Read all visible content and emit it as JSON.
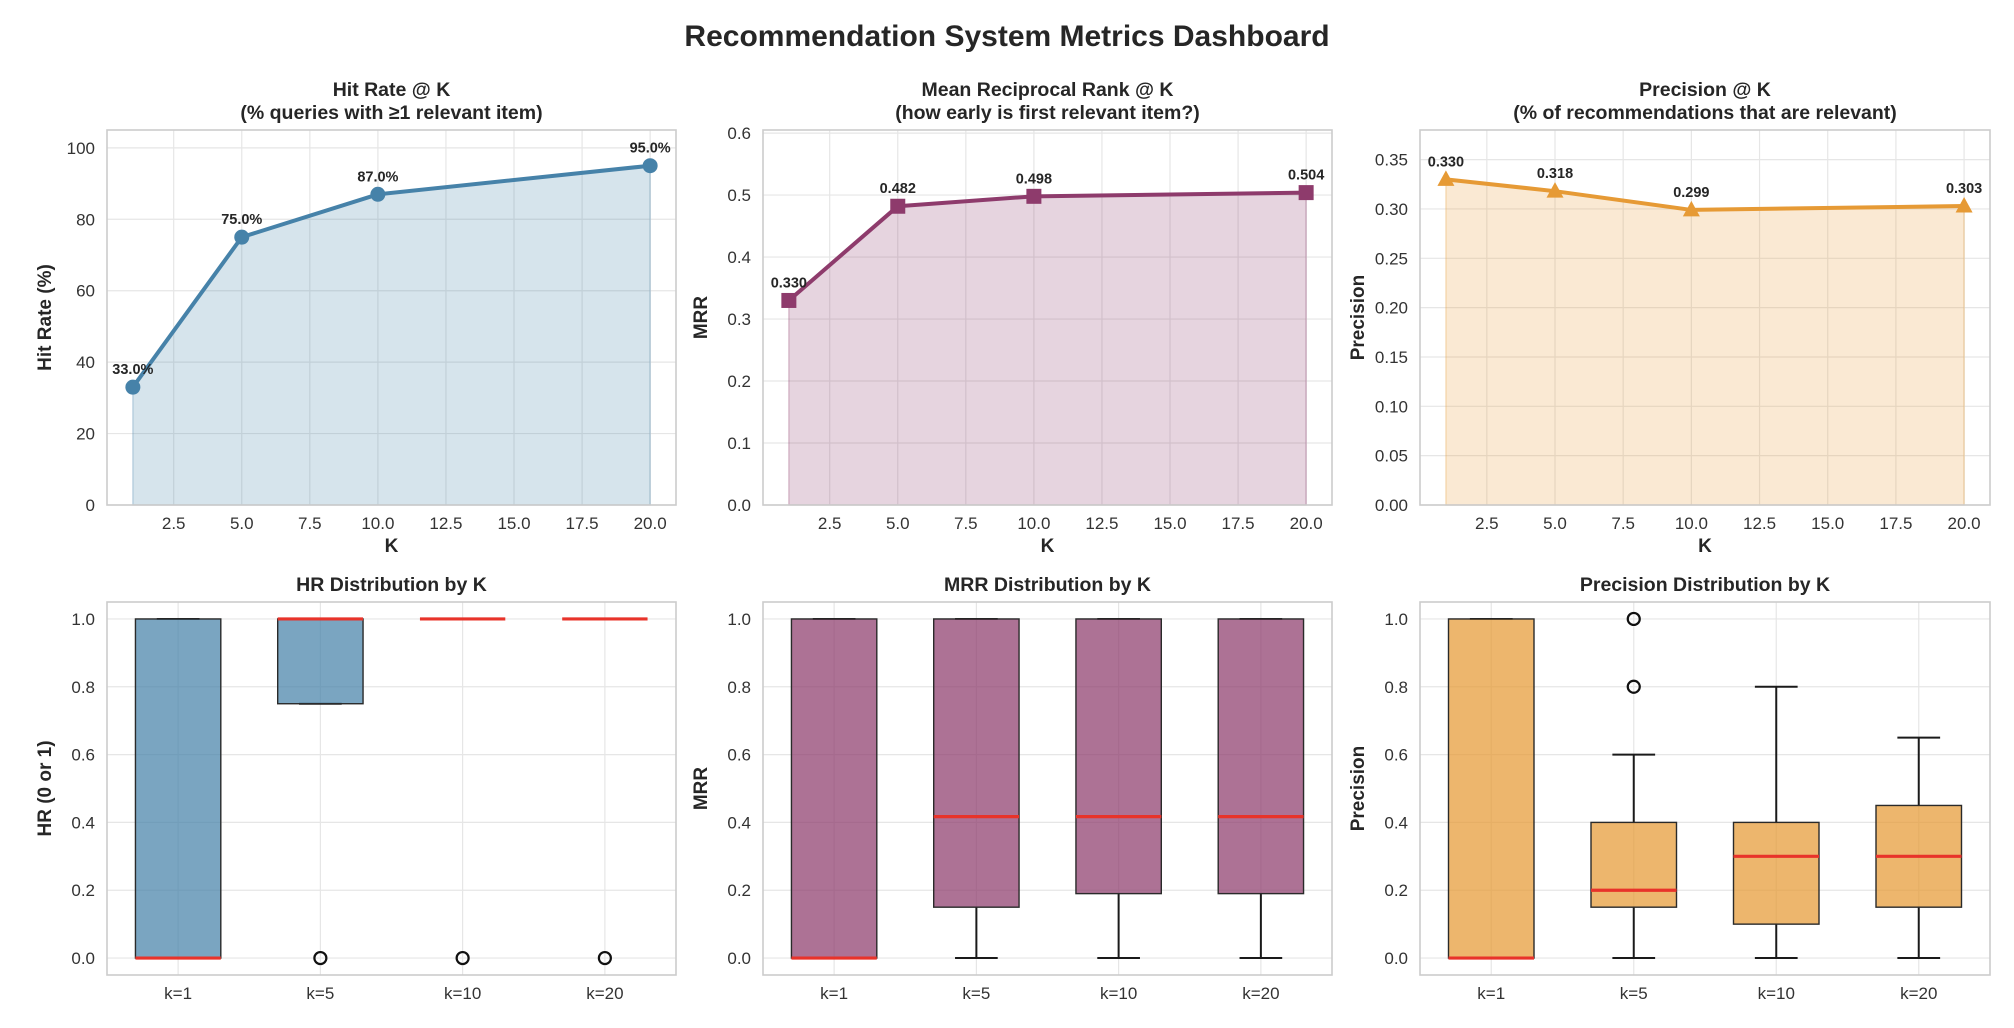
{
  "suptitle": "Recommendation System Metrics Dashboard",
  "colors": {
    "hr": "#4682a9",
    "mrr": "#8e3b6c",
    "precision": "#e69a35",
    "median": "#e8332a",
    "grid": "#e6e6e6",
    "frame": "#cccccc"
  },
  "chart_data": [
    {
      "id": "hr-line",
      "type": "line",
      "title": [
        "Hit Rate @ K",
        "(% queries with ≥1 relevant item)"
      ],
      "xlabel": "K",
      "ylabel": "Hit Rate (%)",
      "x": [
        1,
        5,
        10,
        20
      ],
      "values": [
        33.0,
        75.0,
        87.0,
        95.0
      ],
      "data_labels": [
        "33.0%",
        "75.0%",
        "87.0%",
        "95.0%"
      ],
      "xlim": [
        0.05,
        20.95
      ],
      "ylim": [
        0,
        105
      ],
      "xticks": [
        2.5,
        5.0,
        7.5,
        10.0,
        12.5,
        15.0,
        17.5,
        20.0
      ],
      "xtick_labels": [
        "2.5",
        "5.0",
        "7.5",
        "10.0",
        "12.5",
        "15.0",
        "17.5",
        "20.0"
      ],
      "yticks": [
        0,
        20,
        40,
        60,
        80,
        100
      ],
      "ytick_labels": [
        "0",
        "20",
        "40",
        "60",
        "80",
        "100"
      ],
      "marker": "circle",
      "color_key": "hr",
      "filled": true
    },
    {
      "id": "mrr-line",
      "type": "line",
      "title": [
        "Mean Reciprocal Rank @ K",
        "(how early is first relevant item?)"
      ],
      "xlabel": "K",
      "ylabel": "MRR",
      "x": [
        1,
        5,
        10,
        20
      ],
      "values": [
        0.33,
        0.482,
        0.498,
        0.504
      ],
      "data_labels": [
        "0.330",
        "0.482",
        "0.498",
        "0.504"
      ],
      "xlim": [
        0.05,
        20.95
      ],
      "ylim": [
        0,
        0.605
      ],
      "xticks": [
        2.5,
        5.0,
        7.5,
        10.0,
        12.5,
        15.0,
        17.5,
        20.0
      ],
      "xtick_labels": [
        "2.5",
        "5.0",
        "7.5",
        "10.0",
        "12.5",
        "15.0",
        "17.5",
        "20.0"
      ],
      "yticks": [
        0.0,
        0.1,
        0.2,
        0.3,
        0.4,
        0.5,
        0.6
      ],
      "ytick_labels": [
        "0.0",
        "0.1",
        "0.2",
        "0.3",
        "0.4",
        "0.5",
        "0.6"
      ],
      "marker": "square",
      "color_key": "mrr",
      "filled": true
    },
    {
      "id": "precision-line",
      "type": "line",
      "title": [
        "Precision @ K",
        "(% of recommendations that are relevant)"
      ],
      "xlabel": "K",
      "ylabel": "Precision",
      "x": [
        1,
        5,
        10,
        20
      ],
      "values": [
        0.33,
        0.318,
        0.299,
        0.303
      ],
      "data_labels": [
        "0.330",
        "0.318",
        "0.299",
        "0.303"
      ],
      "xlim": [
        0.05,
        20.95
      ],
      "ylim": [
        0,
        0.38
      ],
      "xticks": [
        2.5,
        5.0,
        7.5,
        10.0,
        12.5,
        15.0,
        17.5,
        20.0
      ],
      "xtick_labels": [
        "2.5",
        "5.0",
        "7.5",
        "10.0",
        "12.5",
        "15.0",
        "17.5",
        "20.0"
      ],
      "yticks": [
        0.0,
        0.05,
        0.1,
        0.15,
        0.2,
        0.25,
        0.3,
        0.35
      ],
      "ytick_labels": [
        "0.00",
        "0.05",
        "0.10",
        "0.15",
        "0.20",
        "0.25",
        "0.30",
        "0.35"
      ],
      "marker": "triangle",
      "color_key": "precision",
      "filled": true
    },
    {
      "id": "hr-box",
      "type": "box",
      "title": [
        "HR Distribution by K"
      ],
      "xlabel": "",
      "ylabel": "HR (0 or 1)",
      "categories": [
        "k=1",
        "k=5",
        "k=10",
        "k=20"
      ],
      "ylim": [
        -0.05,
        1.05
      ],
      "yticks": [
        0.0,
        0.2,
        0.4,
        0.6,
        0.8,
        1.0
      ],
      "ytick_labels": [
        "0.0",
        "0.2",
        "0.4",
        "0.6",
        "0.8",
        "1.0"
      ],
      "color_key": "hr",
      "boxes": [
        {
          "whislo": 0.0,
          "q1": 0.0,
          "med": 0.0,
          "q3": 1.0,
          "whishi": 1.0,
          "fliers": []
        },
        {
          "whislo": 0.75,
          "q1": 0.75,
          "med": 1.0,
          "q3": 1.0,
          "whishi": 1.0,
          "fliers": [
            0.0
          ]
        },
        {
          "whislo": 1.0,
          "q1": 1.0,
          "med": 1.0,
          "q3": 1.0,
          "whishi": 1.0,
          "fliers": [
            0.0
          ]
        },
        {
          "whislo": 1.0,
          "q1": 1.0,
          "med": 1.0,
          "q3": 1.0,
          "whishi": 1.0,
          "fliers": [
            0.0
          ]
        }
      ]
    },
    {
      "id": "mrr-box",
      "type": "box",
      "title": [
        "MRR Distribution by K"
      ],
      "xlabel": "",
      "ylabel": "MRR",
      "categories": [
        "k=1",
        "k=5",
        "k=10",
        "k=20"
      ],
      "ylim": [
        -0.05,
        1.05
      ],
      "yticks": [
        0.0,
        0.2,
        0.4,
        0.6,
        0.8,
        1.0
      ],
      "ytick_labels": [
        "0.0",
        "0.2",
        "0.4",
        "0.6",
        "0.8",
        "1.0"
      ],
      "color_key": "mrr",
      "boxes": [
        {
          "whislo": 0.0,
          "q1": 0.0,
          "med": 0.0,
          "q3": 1.0,
          "whishi": 1.0,
          "fliers": []
        },
        {
          "whislo": 0.0,
          "q1": 0.15,
          "med": 0.417,
          "q3": 1.0,
          "whishi": 1.0,
          "fliers": []
        },
        {
          "whislo": 0.0,
          "q1": 0.19,
          "med": 0.417,
          "q3": 1.0,
          "whishi": 1.0,
          "fliers": []
        },
        {
          "whislo": 0.0,
          "q1": 0.19,
          "med": 0.417,
          "q3": 1.0,
          "whishi": 1.0,
          "fliers": []
        }
      ]
    },
    {
      "id": "precision-box",
      "type": "box",
      "title": [
        "Precision Distribution by K"
      ],
      "xlabel": "",
      "ylabel": "Precision",
      "categories": [
        "k=1",
        "k=5",
        "k=10",
        "k=20"
      ],
      "ylim": [
        -0.05,
        1.05
      ],
      "yticks": [
        0.0,
        0.2,
        0.4,
        0.6,
        0.8,
        1.0
      ],
      "ytick_labels": [
        "0.0",
        "0.2",
        "0.4",
        "0.6",
        "0.8",
        "1.0"
      ],
      "color_key": "precision",
      "boxes": [
        {
          "whislo": 0.0,
          "q1": 0.0,
          "med": 0.0,
          "q3": 1.0,
          "whishi": 1.0,
          "fliers": []
        },
        {
          "whislo": 0.0,
          "q1": 0.15,
          "med": 0.2,
          "q3": 0.4,
          "whishi": 0.6,
          "fliers": [
            0.8,
            1.0
          ]
        },
        {
          "whislo": 0.0,
          "q1": 0.1,
          "med": 0.3,
          "q3": 0.4,
          "whishi": 0.8,
          "fliers": []
        },
        {
          "whislo": 0.0,
          "q1": 0.15,
          "med": 0.3,
          "q3": 0.45,
          "whishi": 0.65,
          "fliers": []
        }
      ]
    }
  ]
}
